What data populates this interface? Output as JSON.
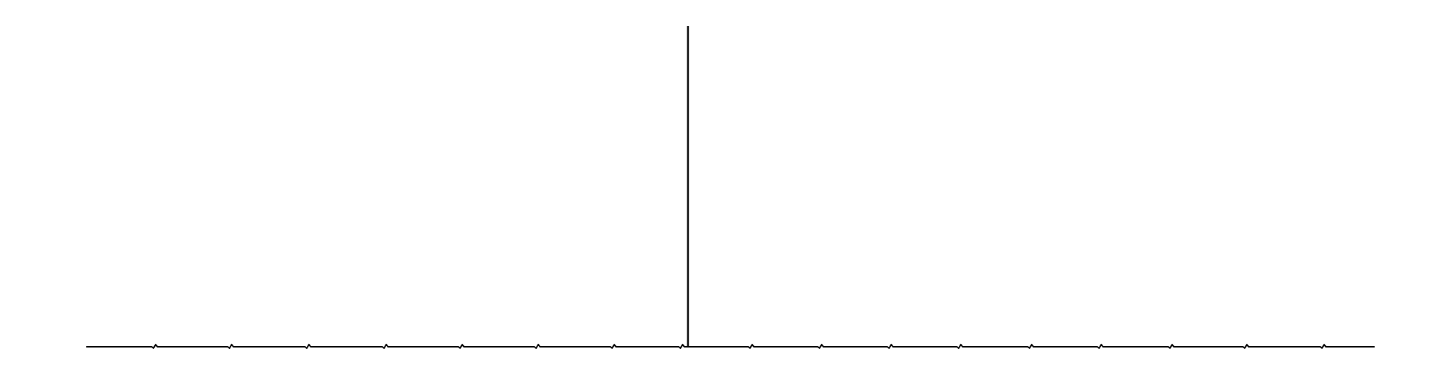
{
  "chart_data": {
    "type": "line",
    "title": "",
    "xlabel": "",
    "ylabel": "",
    "axes_visible": false,
    "grid": false,
    "line_color": "#000000",
    "background_color": "#ffffff",
    "baseline": {
      "x_range": [
        0,
        1
      ],
      "y": 0
    },
    "peaks": [
      {
        "x": 0.467,
        "y": 1.0
      }
    ],
    "baseline_artifacts": [
      {
        "x": 0.053,
        "y": 0.007
      },
      {
        "x": 0.112,
        "y": 0.007
      },
      {
        "x": 0.172,
        "y": 0.007
      },
      {
        "x": 0.232,
        "y": 0.007
      },
      {
        "x": 0.291,
        "y": 0.007
      },
      {
        "x": 0.35,
        "y": 0.007
      },
      {
        "x": 0.409,
        "y": 0.007
      },
      {
        "x": 0.462,
        "y": 0.007
      },
      {
        "x": 0.516,
        "y": 0.007
      },
      {
        "x": 0.57,
        "y": 0.007
      },
      {
        "x": 0.624,
        "y": 0.007
      },
      {
        "x": 0.678,
        "y": 0.007
      },
      {
        "x": 0.733,
        "y": 0.007
      },
      {
        "x": 0.787,
        "y": 0.007
      },
      {
        "x": 0.842,
        "y": 0.007
      },
      {
        "x": 0.9,
        "y": 0.007
      },
      {
        "x": 0.96,
        "y": 0.007
      }
    ]
  }
}
